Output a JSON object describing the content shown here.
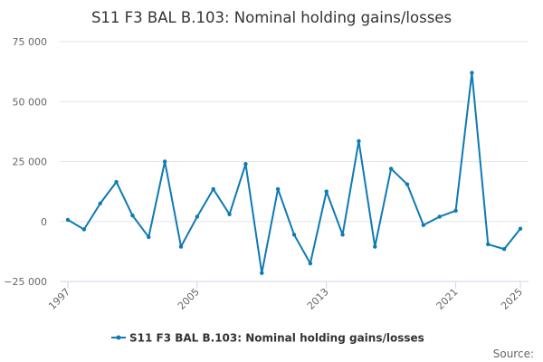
{
  "chart_data": {
    "type": "line",
    "title": "S11 F3 BAL B.103: Nominal holding gains/losses",
    "xlabel": "",
    "ylabel": "",
    "ylim": [
      -25000,
      75000
    ],
    "yticks": [
      75000,
      50000,
      25000,
      0,
      -25000
    ],
    "ytick_labels": [
      "75 000",
      "50 000",
      "25 000",
      "0",
      "−25 000"
    ],
    "xlim": [
      1997,
      2025
    ],
    "xticks": [
      1997,
      2005,
      2013,
      2021,
      2025
    ],
    "xtick_labels": [
      "1997",
      "2005",
      "2013",
      "2021",
      "2025"
    ],
    "grid": "horizontal",
    "legend_position": "bottom",
    "color": "#0f7ab3",
    "series": [
      {
        "name": "S11 F3 BAL B.103: Nominal holding gains/losses",
        "x": [
          1997,
          1998,
          1999,
          2000,
          2001,
          2002,
          2003,
          2004,
          2005,
          2006,
          2007,
          2008,
          2009,
          2010,
          2011,
          2012,
          2013,
          2014,
          2015,
          2016,
          2017,
          2018,
          2019,
          2020,
          2021,
          2022,
          2023,
          2024,
          2025
        ],
        "values": [
          700,
          -3300,
          7500,
          16500,
          2500,
          -6500,
          25000,
          -10500,
          2000,
          13500,
          3000,
          24000,
          -21500,
          13500,
          -5500,
          -17500,
          12500,
          -5500,
          33500,
          -10500,
          22000,
          15500,
          -1500,
          2000,
          4500,
          62000,
          -9500,
          -11500,
          -3000
        ]
      }
    ]
  },
  "source_label": "Source:"
}
